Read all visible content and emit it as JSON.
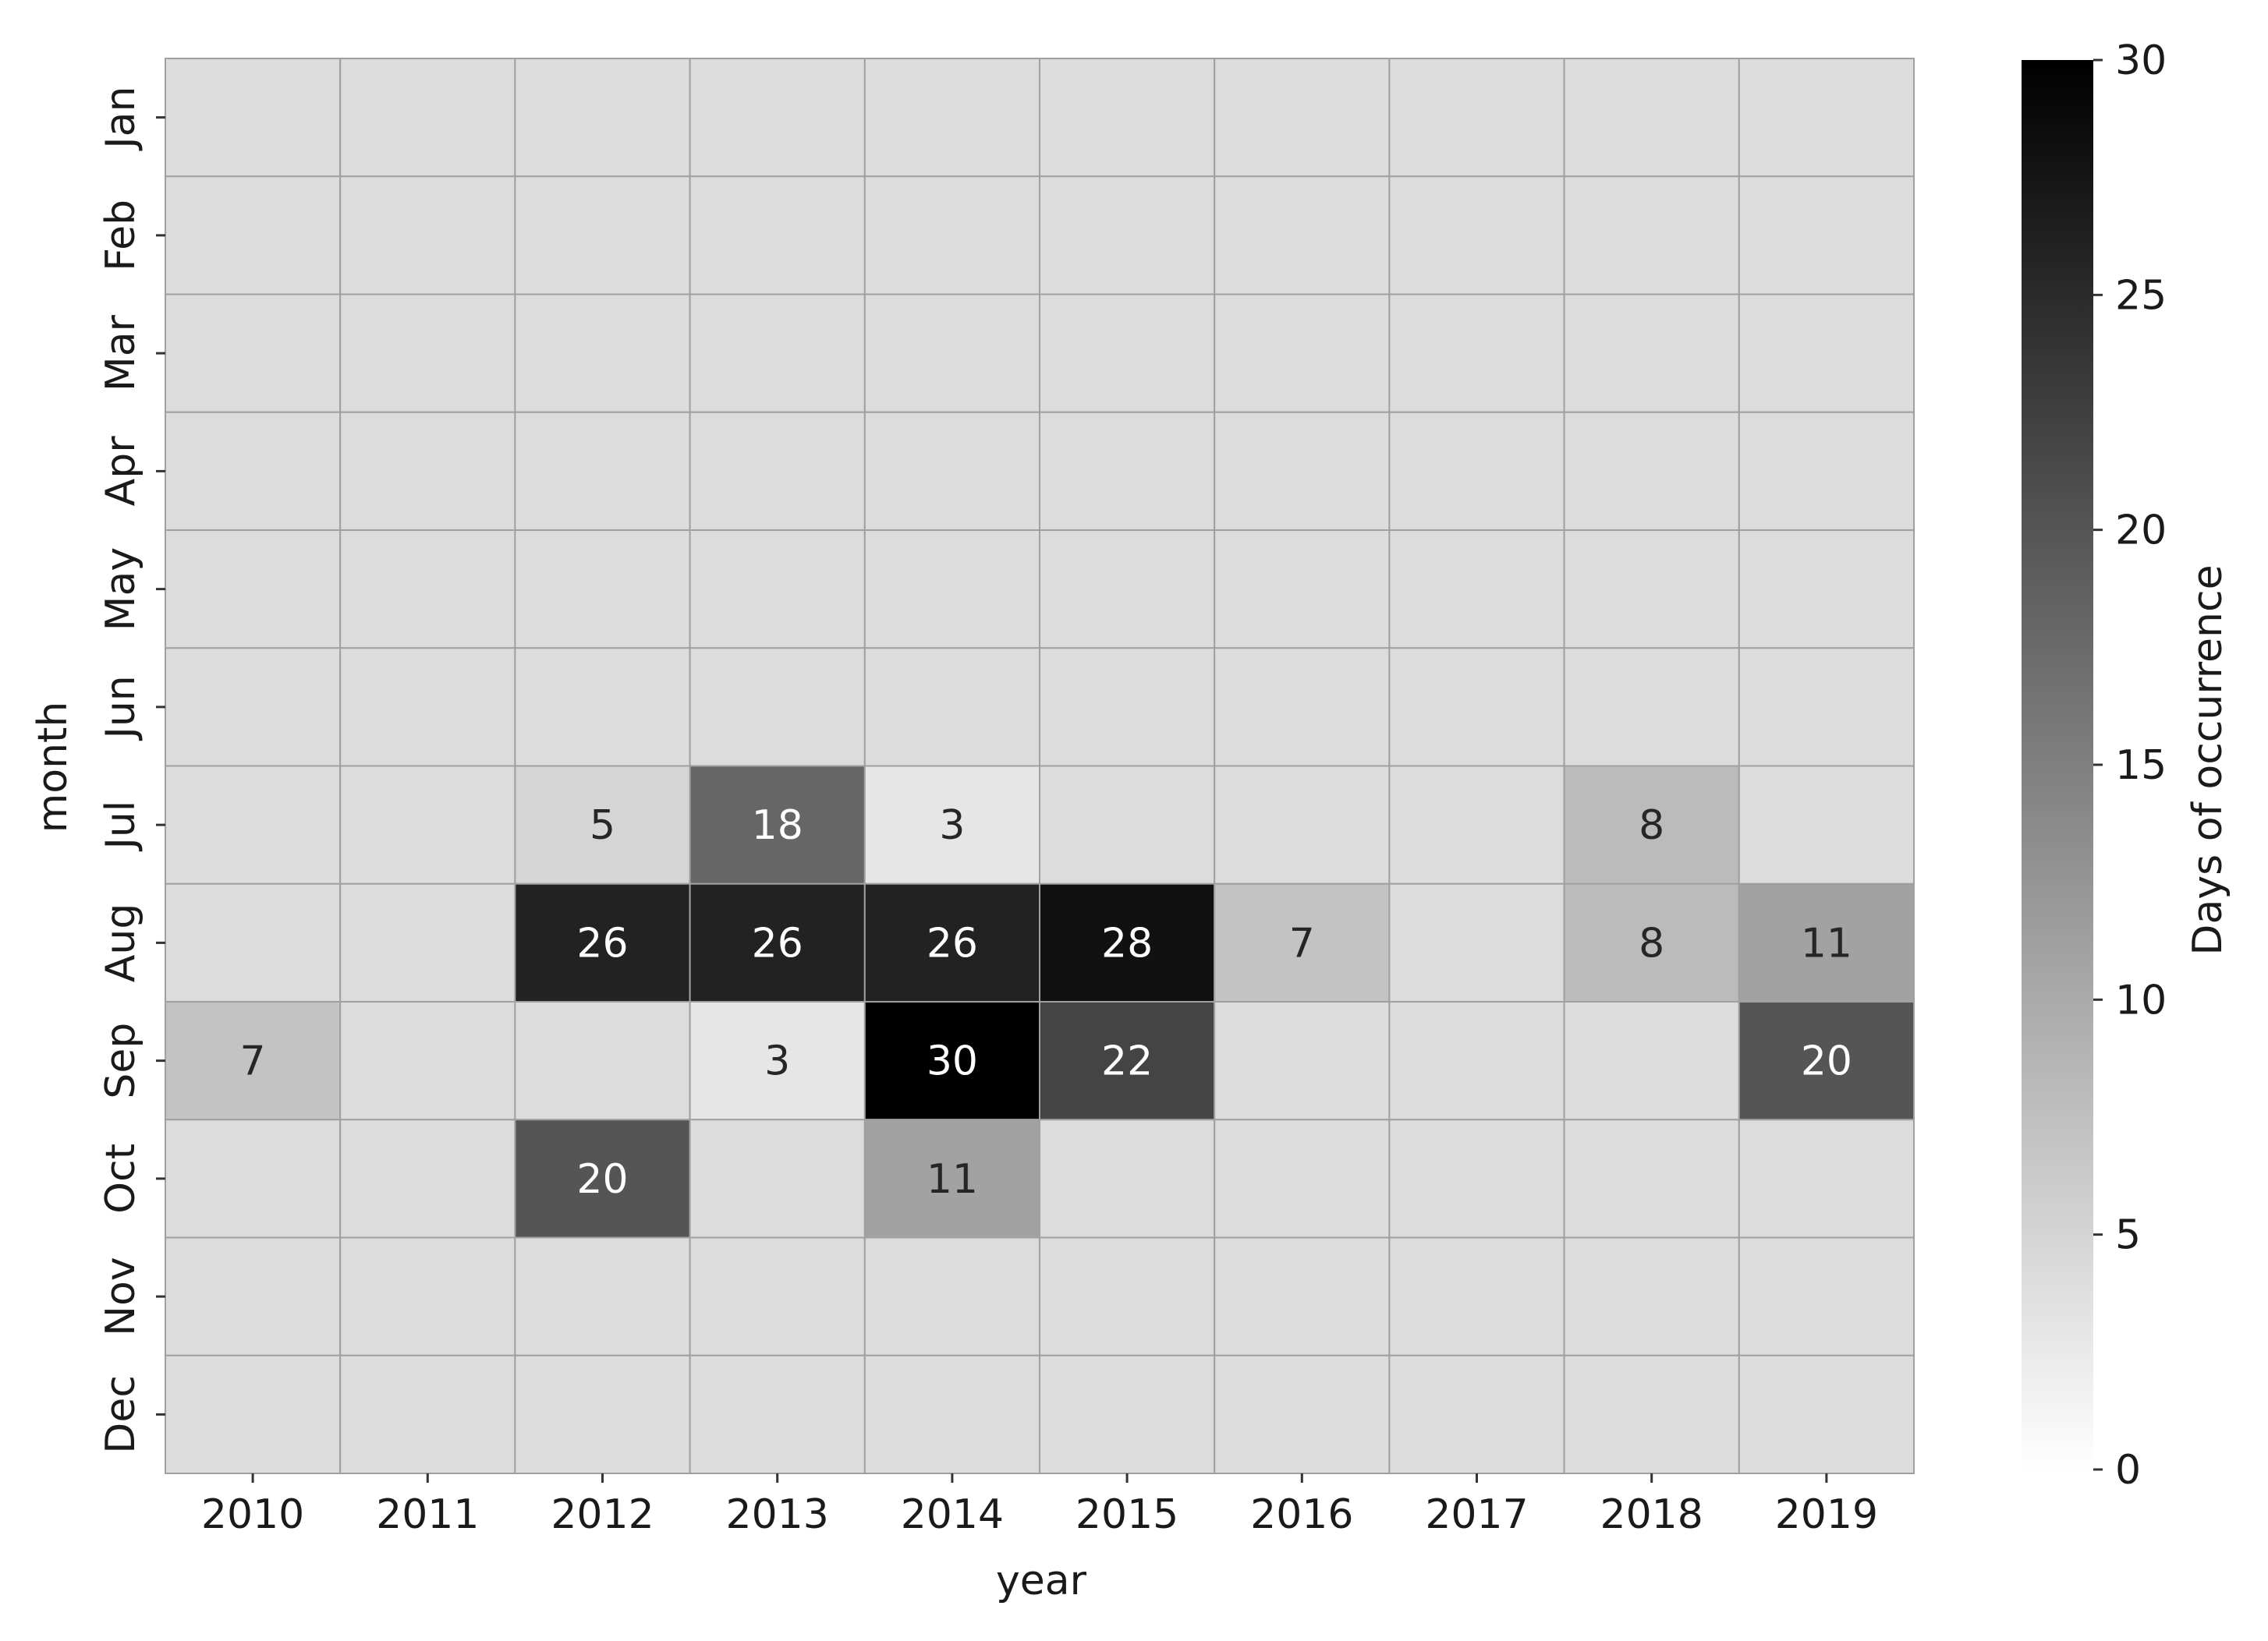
{
  "chart_data": {
    "type": "heatmap",
    "x_title": "year",
    "y_title": "month",
    "x_categories": [
      "2010",
      "2011",
      "2012",
      "2013",
      "2014",
      "2015",
      "2016",
      "2017",
      "2018",
      "2019"
    ],
    "y_categories": [
      "Jan",
      "Feb",
      "Mar",
      "Apr",
      "May",
      "Jun",
      "Jul",
      "Aug",
      "Sep",
      "Oct",
      "Nov",
      "Dec"
    ],
    "values": [
      [
        null,
        null,
        null,
        null,
        null,
        null,
        null,
        null,
        null,
        null
      ],
      [
        null,
        null,
        null,
        null,
        null,
        null,
        null,
        null,
        null,
        null
      ],
      [
        null,
        null,
        null,
        null,
        null,
        null,
        null,
        null,
        null,
        null
      ],
      [
        null,
        null,
        null,
        null,
        null,
        null,
        null,
        null,
        null,
        null
      ],
      [
        null,
        null,
        null,
        null,
        null,
        null,
        null,
        null,
        null,
        null
      ],
      [
        null,
        null,
        null,
        null,
        null,
        null,
        null,
        null,
        null,
        null
      ],
      [
        null,
        null,
        5,
        18,
        3,
        null,
        null,
        null,
        8,
        null
      ],
      [
        null,
        null,
        26,
        26,
        26,
        28,
        7,
        null,
        8,
        11
      ],
      [
        7,
        null,
        null,
        3,
        30,
        22,
        null,
        null,
        null,
        20
      ],
      [
        null,
        null,
        20,
        null,
        11,
        null,
        null,
        null,
        null,
        null
      ],
      [
        null,
        null,
        null,
        null,
        null,
        null,
        null,
        null,
        null,
        null
      ],
      [
        null,
        null,
        null,
        null,
        null,
        null,
        null,
        null,
        null,
        null
      ]
    ],
    "colorbar": {
      "label": "Days of occurrence",
      "range": [
        0,
        30
      ],
      "ticks": [
        "0",
        "5",
        "10",
        "15",
        "20",
        "25",
        "30"
      ],
      "colormap": "white-to-black"
    },
    "missing_cell_color": "#dcdcdc",
    "grid_line_color": "#a0a0a0",
    "grid": true
  }
}
